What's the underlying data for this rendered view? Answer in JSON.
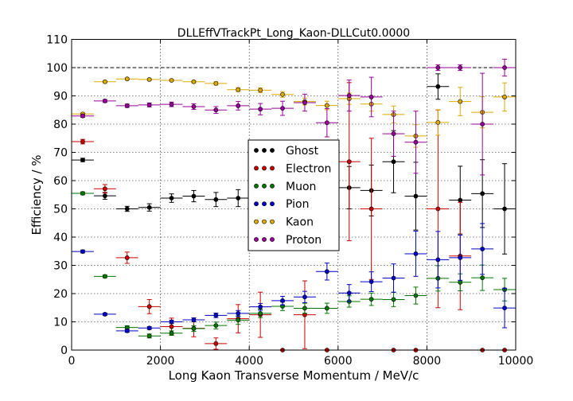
{
  "chart_data": {
    "type": "scatter",
    "title": "DLLEffVTrackPt_Long_Kaon-DLLCut0.0000",
    "xlabel": "Long Kaon Transverse Momentum / MeV/c",
    "ylabel": "Efficiency / %",
    "xlim": [
      0,
      10000
    ],
    "ylim": [
      0,
      110
    ],
    "xticks": [
      0,
      2000,
      4000,
      6000,
      8000,
      10000
    ],
    "yticks": [
      0,
      10,
      20,
      30,
      40,
      50,
      60,
      70,
      80,
      90,
      100,
      110
    ],
    "grid": true,
    "reference_line": 100,
    "legend_position": "center",
    "x": [
      250,
      750,
      1250,
      1750,
      2250,
      2750,
      3250,
      3750,
      4250,
      4750,
      5250,
      5750,
      6250,
      6750,
      7250,
      7750,
      8250,
      8750,
      9250,
      9750
    ],
    "x_halfwidth": 250,
    "series": [
      {
        "name": "Ghost",
        "color": "#000000",
        "values": [
          67.3,
          54.6,
          50.0,
          50.5,
          53.8,
          54.5,
          53.3,
          53.8,
          53.5,
          52.0,
          55.0,
          43.2,
          57.5,
          56.5,
          66.7,
          54.5,
          93.3,
          53.1,
          55.4,
          50.0
        ],
        "errors": [
          0.6,
          1.2,
          0.9,
          1.3,
          1.5,
          2.0,
          2.5,
          3.0,
          4.0,
          5.0,
          6.0,
          6.5,
          7.5,
          9.0,
          11.0,
          12.0,
          4.5,
          12.0,
          12.0,
          16.0
        ]
      },
      {
        "name": "Electron",
        "color": "#cc0000",
        "values": [
          73.8,
          57.1,
          32.7,
          15.4,
          8.3,
          7.7,
          2.3,
          11.1,
          12.5,
          0.0,
          12.5,
          0.0,
          66.7,
          50.0,
          0.0,
          0.0,
          50.0,
          33.3,
          0.0,
          0.0
        ],
        "errors": [
          0.8,
          1.5,
          2.0,
          2.5,
          3.0,
          3.0,
          2.0,
          5.0,
          8.0,
          0.0,
          12.0,
          0.0,
          28.0,
          25.0,
          0.0,
          0.0,
          35.0,
          19.0,
          0.0,
          0.0
        ]
      },
      {
        "name": "Muon",
        "color": "#007700",
        "values": [
          55.5,
          26.1,
          8.0,
          5.0,
          6.0,
          7.6,
          8.7,
          10.6,
          13.0,
          15.5,
          14.8,
          14.8,
          17.2,
          18.0,
          17.9,
          19.3,
          25.4,
          24.0,
          25.6,
          21.4
        ],
        "errors": [
          0.5,
          0.5,
          0.6,
          0.7,
          0.8,
          1.0,
          1.2,
          1.5,
          1.5,
          1.5,
          1.8,
          1.8,
          2.0,
          2.2,
          2.5,
          3.0,
          4.5,
          3.0,
          4.5,
          4.0
        ]
      },
      {
        "name": "Pion",
        "color": "#0000cc",
        "values": [
          34.9,
          12.7,
          6.8,
          7.8,
          10.0,
          10.7,
          12.3,
          13.0,
          15.3,
          17.5,
          18.8,
          27.8,
          20.2,
          24.2,
          25.5,
          34.1,
          32.0,
          32.7,
          35.8,
          14.9
        ],
        "errors": [
          0.5,
          0.4,
          0.5,
          0.5,
          0.6,
          0.7,
          0.8,
          1.0,
          1.2,
          1.5,
          2.0,
          3.0,
          3.0,
          3.5,
          5.0,
          8.0,
          10.0,
          8.0,
          9.0,
          7.0
        ]
      },
      {
        "name": "Kaon",
        "color": "#ddaa00",
        "values": [
          83.6,
          95.0,
          96.0,
          95.8,
          95.5,
          95.0,
          94.4,
          92.2,
          92.0,
          90.5,
          88.0,
          86.6,
          89.0,
          87.1,
          83.4,
          75.8,
          80.6,
          88.0,
          84.2,
          89.6
        ],
        "errors": [
          0.3,
          0.3,
          0.3,
          0.3,
          0.3,
          0.4,
          0.6,
          0.7,
          0.8,
          1.0,
          1.2,
          1.5,
          2.0,
          2.5,
          3.0,
          4.0,
          4.5,
          5.0,
          5.5,
          5.0
        ]
      },
      {
        "name": "Proton",
        "color": "#990099",
        "values": [
          82.9,
          88.2,
          86.5,
          86.8,
          87.0,
          86.2,
          85.0,
          86.5,
          85.3,
          85.6,
          87.6,
          80.5,
          90.1,
          89.6,
          76.6,
          73.6,
          100.0,
          100.0,
          80.0,
          100.0
        ],
        "errors": [
          0.5,
          0.5,
          0.6,
          0.7,
          0.8,
          1.0,
          1.2,
          1.5,
          2.0,
          2.5,
          3.0,
          5.0,
          5.5,
          7.0,
          8.0,
          11.0,
          1.0,
          1.0,
          18.0,
          3.0
        ]
      }
    ]
  }
}
